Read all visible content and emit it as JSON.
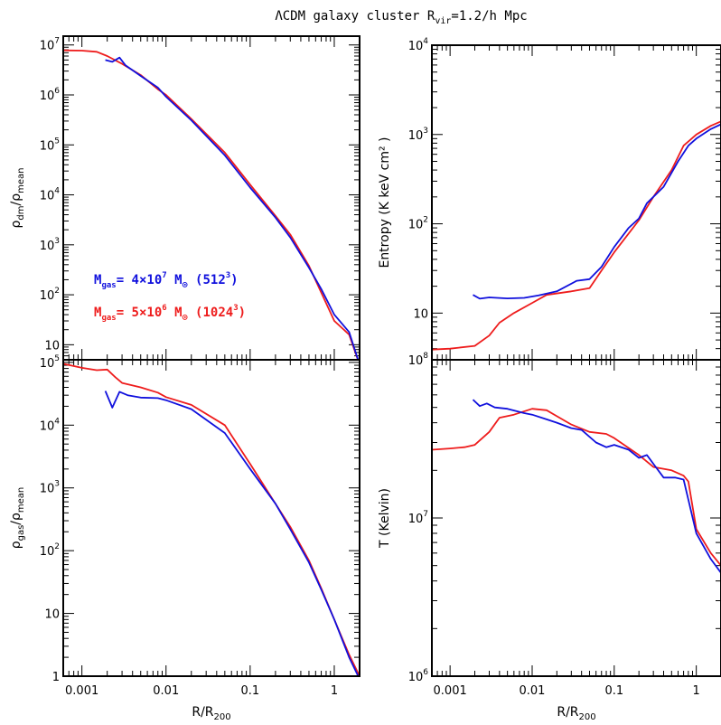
{
  "figure": {
    "title": "ΛCDM galaxy cluster R",
    "title_sub": "vir",
    "title_rest": "=1.2/h Mpc"
  },
  "colors": {
    "blue": "#1010dd",
    "red": "#ee1c1c"
  },
  "chart_data": [
    {
      "type": "line",
      "panel": "top-left",
      "ylabel": "ρdm/ρmean",
      "xlabel": "",
      "xscale": "log",
      "yscale": "log",
      "xlim": [
        0.0006,
        2.0
      ],
      "ylim": [
        5,
        15000000
      ],
      "yticks": [
        {
          "v": 10,
          "base": "10",
          "exp": ""
        },
        {
          "v": 100,
          "base": "10",
          "exp": "2"
        },
        {
          "v": 1000,
          "base": "10",
          "exp": "3"
        },
        {
          "v": 10000,
          "base": "10",
          "exp": "4"
        },
        {
          "v": 100000,
          "base": "10",
          "exp": "5"
        },
        {
          "v": 1000000,
          "base": "10",
          "exp": "6"
        },
        {
          "v": 10000000,
          "base": "10",
          "exp": "7"
        }
      ],
      "xticks": [],
      "series": [
        {
          "color": "red",
          "points": [
            [
              0.0006,
              7800000
            ],
            [
              0.001,
              7700000
            ],
            [
              0.0015,
              7300000
            ],
            [
              0.002,
              6000000
            ],
            [
              0.003,
              4200000
            ],
            [
              0.005,
              2500000
            ],
            [
              0.008,
              1300000
            ],
            [
              0.01,
              1000000
            ],
            [
              0.02,
              330000
            ],
            [
              0.05,
              70000
            ],
            [
              0.1,
              16000
            ],
            [
              0.2,
              3800
            ],
            [
              0.3,
              1600
            ],
            [
              0.5,
              380
            ],
            [
              0.7,
              110
            ],
            [
              1.0,
              30
            ],
            [
              1.5,
              16
            ],
            [
              2.0,
              4
            ]
          ]
        },
        {
          "color": "blue",
          "points": [
            [
              0.0019,
              5000000
            ],
            [
              0.0023,
              4600000
            ],
            [
              0.0028,
              5600000
            ],
            [
              0.0033,
              3900000
            ],
            [
              0.005,
              2400000
            ],
            [
              0.008,
              1400000
            ],
            [
              0.01,
              920000
            ],
            [
              0.02,
              310000
            ],
            [
              0.05,
              62000
            ],
            [
              0.1,
              14000
            ],
            [
              0.2,
              3500
            ],
            [
              0.3,
              1400
            ],
            [
              0.5,
              350
            ],
            [
              0.7,
              130
            ],
            [
              1.0,
              40
            ],
            [
              1.5,
              18
            ],
            [
              2.0,
              4
            ]
          ]
        }
      ]
    },
    {
      "type": "line",
      "panel": "top-right",
      "ylabel": "Entropy (K keV cm² )",
      "xlabel": "",
      "xscale": "log",
      "yscale": "log",
      "xlim": [
        0.0006,
        2.0
      ],
      "ylim": [
        3,
        10000
      ],
      "yticks": [
        {
          "v": 10,
          "base": "10",
          "exp": ""
        },
        {
          "v": 100,
          "base": "10",
          "exp": "2"
        },
        {
          "v": 1000,
          "base": "10",
          "exp": "3"
        },
        {
          "v": 10000,
          "base": "10",
          "exp": "4"
        }
      ],
      "xticks": [],
      "series": [
        {
          "color": "red",
          "points": [
            [
              0.0006,
              3.9
            ],
            [
              0.001,
              4.0
            ],
            [
              0.002,
              4.3
            ],
            [
              0.003,
              5.6
            ],
            [
              0.004,
              7.8
            ],
            [
              0.006,
              10
            ],
            [
              0.01,
              13
            ],
            [
              0.015,
              16
            ],
            [
              0.03,
              17.5
            ],
            [
              0.05,
              19
            ],
            [
              0.07,
              30
            ],
            [
              0.1,
              48
            ],
            [
              0.2,
              110
            ],
            [
              0.3,
              200
            ],
            [
              0.5,
              400
            ],
            [
              0.7,
              750
            ],
            [
              1.0,
              1000
            ],
            [
              1.5,
              1250
            ],
            [
              2.0,
              1400
            ]
          ]
        },
        {
          "color": "blue",
          "points": [
            [
              0.0019,
              16
            ],
            [
              0.0023,
              14.5
            ],
            [
              0.003,
              15
            ],
            [
              0.005,
              14.6
            ],
            [
              0.008,
              14.8
            ],
            [
              0.012,
              15.8
            ],
            [
              0.02,
              17.5
            ],
            [
              0.035,
              23
            ],
            [
              0.05,
              24
            ],
            [
              0.07,
              33
            ],
            [
              0.1,
              55
            ],
            [
              0.15,
              90
            ],
            [
              0.2,
              115
            ],
            [
              0.25,
              170
            ],
            [
              0.4,
              260
            ],
            [
              0.6,
              500
            ],
            [
              0.8,
              750
            ],
            [
              1.0,
              900
            ],
            [
              1.5,
              1150
            ],
            [
              2.0,
              1300
            ]
          ]
        }
      ]
    },
    {
      "type": "line",
      "panel": "bottom-left",
      "ylabel": "ρgas/ρmean",
      "xlabel": "R/R200",
      "xscale": "log",
      "yscale": "log",
      "xlim": [
        0.0006,
        2.0
      ],
      "ylim": [
        1,
        110000
      ],
      "yticks": [
        {
          "v": 1,
          "base": "1",
          "exp": ""
        },
        {
          "v": 10,
          "base": "10",
          "exp": ""
        },
        {
          "v": 100,
          "base": "10",
          "exp": "2"
        },
        {
          "v": 1000,
          "base": "10",
          "exp": "3"
        },
        {
          "v": 10000,
          "base": "10",
          "exp": "4"
        },
        {
          "v": 100000,
          "base": "10",
          "exp": "5"
        }
      ],
      "xticks": [
        {
          "v": 0.001,
          "label": "0.001"
        },
        {
          "v": 0.01,
          "label": "0.01"
        },
        {
          "v": 0.1,
          "label": "0.1"
        },
        {
          "v": 1,
          "label": "1"
        }
      ],
      "series": [
        {
          "color": "red",
          "points": [
            [
              0.0006,
              95000
            ],
            [
              0.001,
              82000
            ],
            [
              0.0015,
              75000
            ],
            [
              0.002,
              77000
            ],
            [
              0.0025,
              58000
            ],
            [
              0.003,
              47000
            ],
            [
              0.005,
              40000
            ],
            [
              0.008,
              33000
            ],
            [
              0.01,
              28000
            ],
            [
              0.02,
              21000
            ],
            [
              0.05,
              10000
            ],
            [
              0.1,
              2400
            ],
            [
              0.2,
              560
            ],
            [
              0.3,
              240
            ],
            [
              0.5,
              70
            ],
            [
              0.7,
              25
            ],
            [
              1.0,
              8
            ],
            [
              1.5,
              2.2
            ],
            [
              2.0,
              1
            ]
          ]
        },
        {
          "color": "blue",
          "points": [
            [
              0.0019,
              35000
            ],
            [
              0.0023,
              19000
            ],
            [
              0.0028,
              34000
            ],
            [
              0.0035,
              30000
            ],
            [
              0.005,
              27500
            ],
            [
              0.008,
              27000
            ],
            [
              0.01,
              25000
            ],
            [
              0.02,
              18000
            ],
            [
              0.05,
              7500
            ],
            [
              0.1,
              2000
            ],
            [
              0.2,
              560
            ],
            [
              0.3,
              220
            ],
            [
              0.5,
              65
            ],
            [
              0.7,
              24
            ],
            [
              1.0,
              8
            ],
            [
              1.5,
              2.0
            ],
            [
              2.0,
              0.9
            ]
          ]
        }
      ]
    },
    {
      "type": "line",
      "panel": "bottom-right",
      "ylabel": "T (Kelvin)",
      "xlabel": "R/R200",
      "xscale": "log",
      "yscale": "log",
      "xlim": [
        0.0006,
        2.0
      ],
      "ylim": [
        1000000,
        100000000
      ],
      "yticks": [
        {
          "v": 1000000,
          "base": "10",
          "exp": "6"
        },
        {
          "v": 10000000,
          "base": "10",
          "exp": "7"
        },
        {
          "v": 100000000,
          "base": "10",
          "exp": "8"
        }
      ],
      "xticks": [
        {
          "v": 0.001,
          "label": "0.001"
        },
        {
          "v": 0.01,
          "label": "0.01"
        },
        {
          "v": 0.1,
          "label": "0.1"
        },
        {
          "v": 1,
          "label": "1"
        }
      ],
      "series": [
        {
          "color": "red",
          "points": [
            [
              0.0006,
              27000000
            ],
            [
              0.001,
              27500000
            ],
            [
              0.0015,
              28000000
            ],
            [
              0.002,
              29000000
            ],
            [
              0.003,
              35000000
            ],
            [
              0.004,
              43000000
            ],
            [
              0.006,
              45000000
            ],
            [
              0.01,
              49000000
            ],
            [
              0.015,
              48000000
            ],
            [
              0.02,
              44000000
            ],
            [
              0.03,
              39000000
            ],
            [
              0.05,
              35000000
            ],
            [
              0.08,
              34000000
            ],
            [
              0.1,
              32000000
            ],
            [
              0.2,
              25000000
            ],
            [
              0.3,
              21000000
            ],
            [
              0.5,
              20000000
            ],
            [
              0.7,
              18500000
            ],
            [
              0.8,
              17000000
            ],
            [
              1.0,
              8500000
            ],
            [
              1.5,
              6000000
            ],
            [
              2.0,
              5000000
            ]
          ]
        },
        {
          "color": "blue",
          "points": [
            [
              0.0019,
              56000000
            ],
            [
              0.0023,
              51000000
            ],
            [
              0.0028,
              53000000
            ],
            [
              0.0035,
              50000000
            ],
            [
              0.005,
              49000000
            ],
            [
              0.008,
              46000000
            ],
            [
              0.01,
              45000000
            ],
            [
              0.015,
              42000000
            ],
            [
              0.02,
              40000000
            ],
            [
              0.03,
              37000000
            ],
            [
              0.04,
              36000000
            ],
            [
              0.06,
              30000000
            ],
            [
              0.08,
              28000000
            ],
            [
              0.1,
              29000000
            ],
            [
              0.15,
              27000000
            ],
            [
              0.2,
              24000000
            ],
            [
              0.25,
              25000000
            ],
            [
              0.3,
              22000000
            ],
            [
              0.4,
              18000000
            ],
            [
              0.55,
              18000000
            ],
            [
              0.7,
              17500000
            ],
            [
              1.0,
              8000000
            ],
            [
              1.5,
              5500000
            ],
            [
              2.0,
              4500000
            ]
          ]
        }
      ]
    }
  ],
  "legend": [
    {
      "color": "blue",
      "pre": "M",
      "sub": "gas",
      "mid": "= 4×10",
      "sup": "7",
      "post": " M",
      "sun": "⊙",
      "res": "(512",
      "res_sup": "3",
      "res_end": ")"
    },
    {
      "color": "red",
      "pre": "M",
      "sub": "gas",
      "mid": "= 5×10",
      "sup": "6",
      "post": " M",
      "sun": "⊙",
      "res": "(1024",
      "res_sup": "3",
      "res_end": ")"
    }
  ]
}
